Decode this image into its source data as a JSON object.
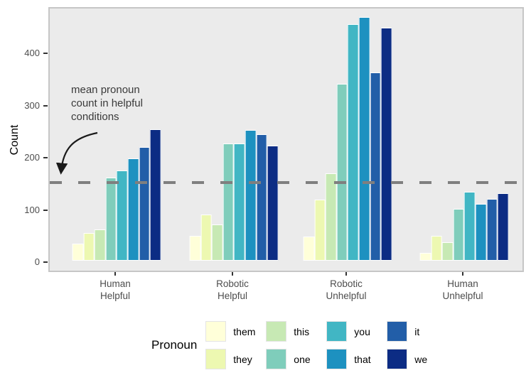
{
  "chart_data": {
    "type": "bar",
    "title": "",
    "xlabel": "",
    "ylabel": "Count",
    "legend_title": "Pronoun",
    "legend_position": "bottom",
    "grid": false,
    "ylim": [
      0,
      488
    ],
    "y_ticks": [
      0,
      100,
      200,
      300,
      400
    ],
    "categories": [
      "Human Helpful",
      "Robotic Helpful",
      "Robotic Unhelpful",
      "Human Unhelpful"
    ],
    "category_lines": [
      [
        "Human",
        "Helpful"
      ],
      [
        "Robotic",
        "Helpful"
      ],
      [
        "Robotic",
        "Unhelpful"
      ],
      [
        "Human",
        "Unhelpful"
      ]
    ],
    "series": [
      {
        "name": "them",
        "color": "#FFFFD9",
        "values": [
          30,
          45,
          44,
          12
        ]
      },
      {
        "name": "they",
        "color": "#EDF8B1",
        "values": [
          50,
          86,
          114,
          45
        ]
      },
      {
        "name": "this",
        "color": "#C7E9B4",
        "values": [
          57,
          67,
          164,
          33
        ]
      },
      {
        "name": "one",
        "color": "#7FCDBB",
        "values": [
          156,
          222,
          336,
          97
        ]
      },
      {
        "name": "you",
        "color": "#41B6C4",
        "values": [
          170,
          222,
          450,
          129
        ]
      },
      {
        "name": "that",
        "color": "#1D91C0",
        "values": [
          193,
          247,
          464,
          106
        ]
      },
      {
        "name": "it",
        "color": "#225EA8",
        "values": [
          215,
          239,
          358,
          116
        ]
      },
      {
        "name": "we",
        "color": "#0C2C84",
        "values": [
          249,
          218,
          443,
          127
        ]
      }
    ],
    "reference_line": {
      "value": 155,
      "style": "dashed",
      "color": "#7F7F7F",
      "label": "mean pronoun count in helpful conditions"
    }
  },
  "annotation": {
    "lines": [
      "mean pronoun",
      "count in helpful",
      "conditions"
    ]
  },
  "colors": {
    "panel_background": "#EBEBEB",
    "panel_border": "#C6C6C6",
    "dashed_line": "#7F7F7F",
    "tick_label": "#4D4D4D",
    "annotation_text": "#3A3A3A",
    "bar_outline": "#FFFFFF"
  }
}
